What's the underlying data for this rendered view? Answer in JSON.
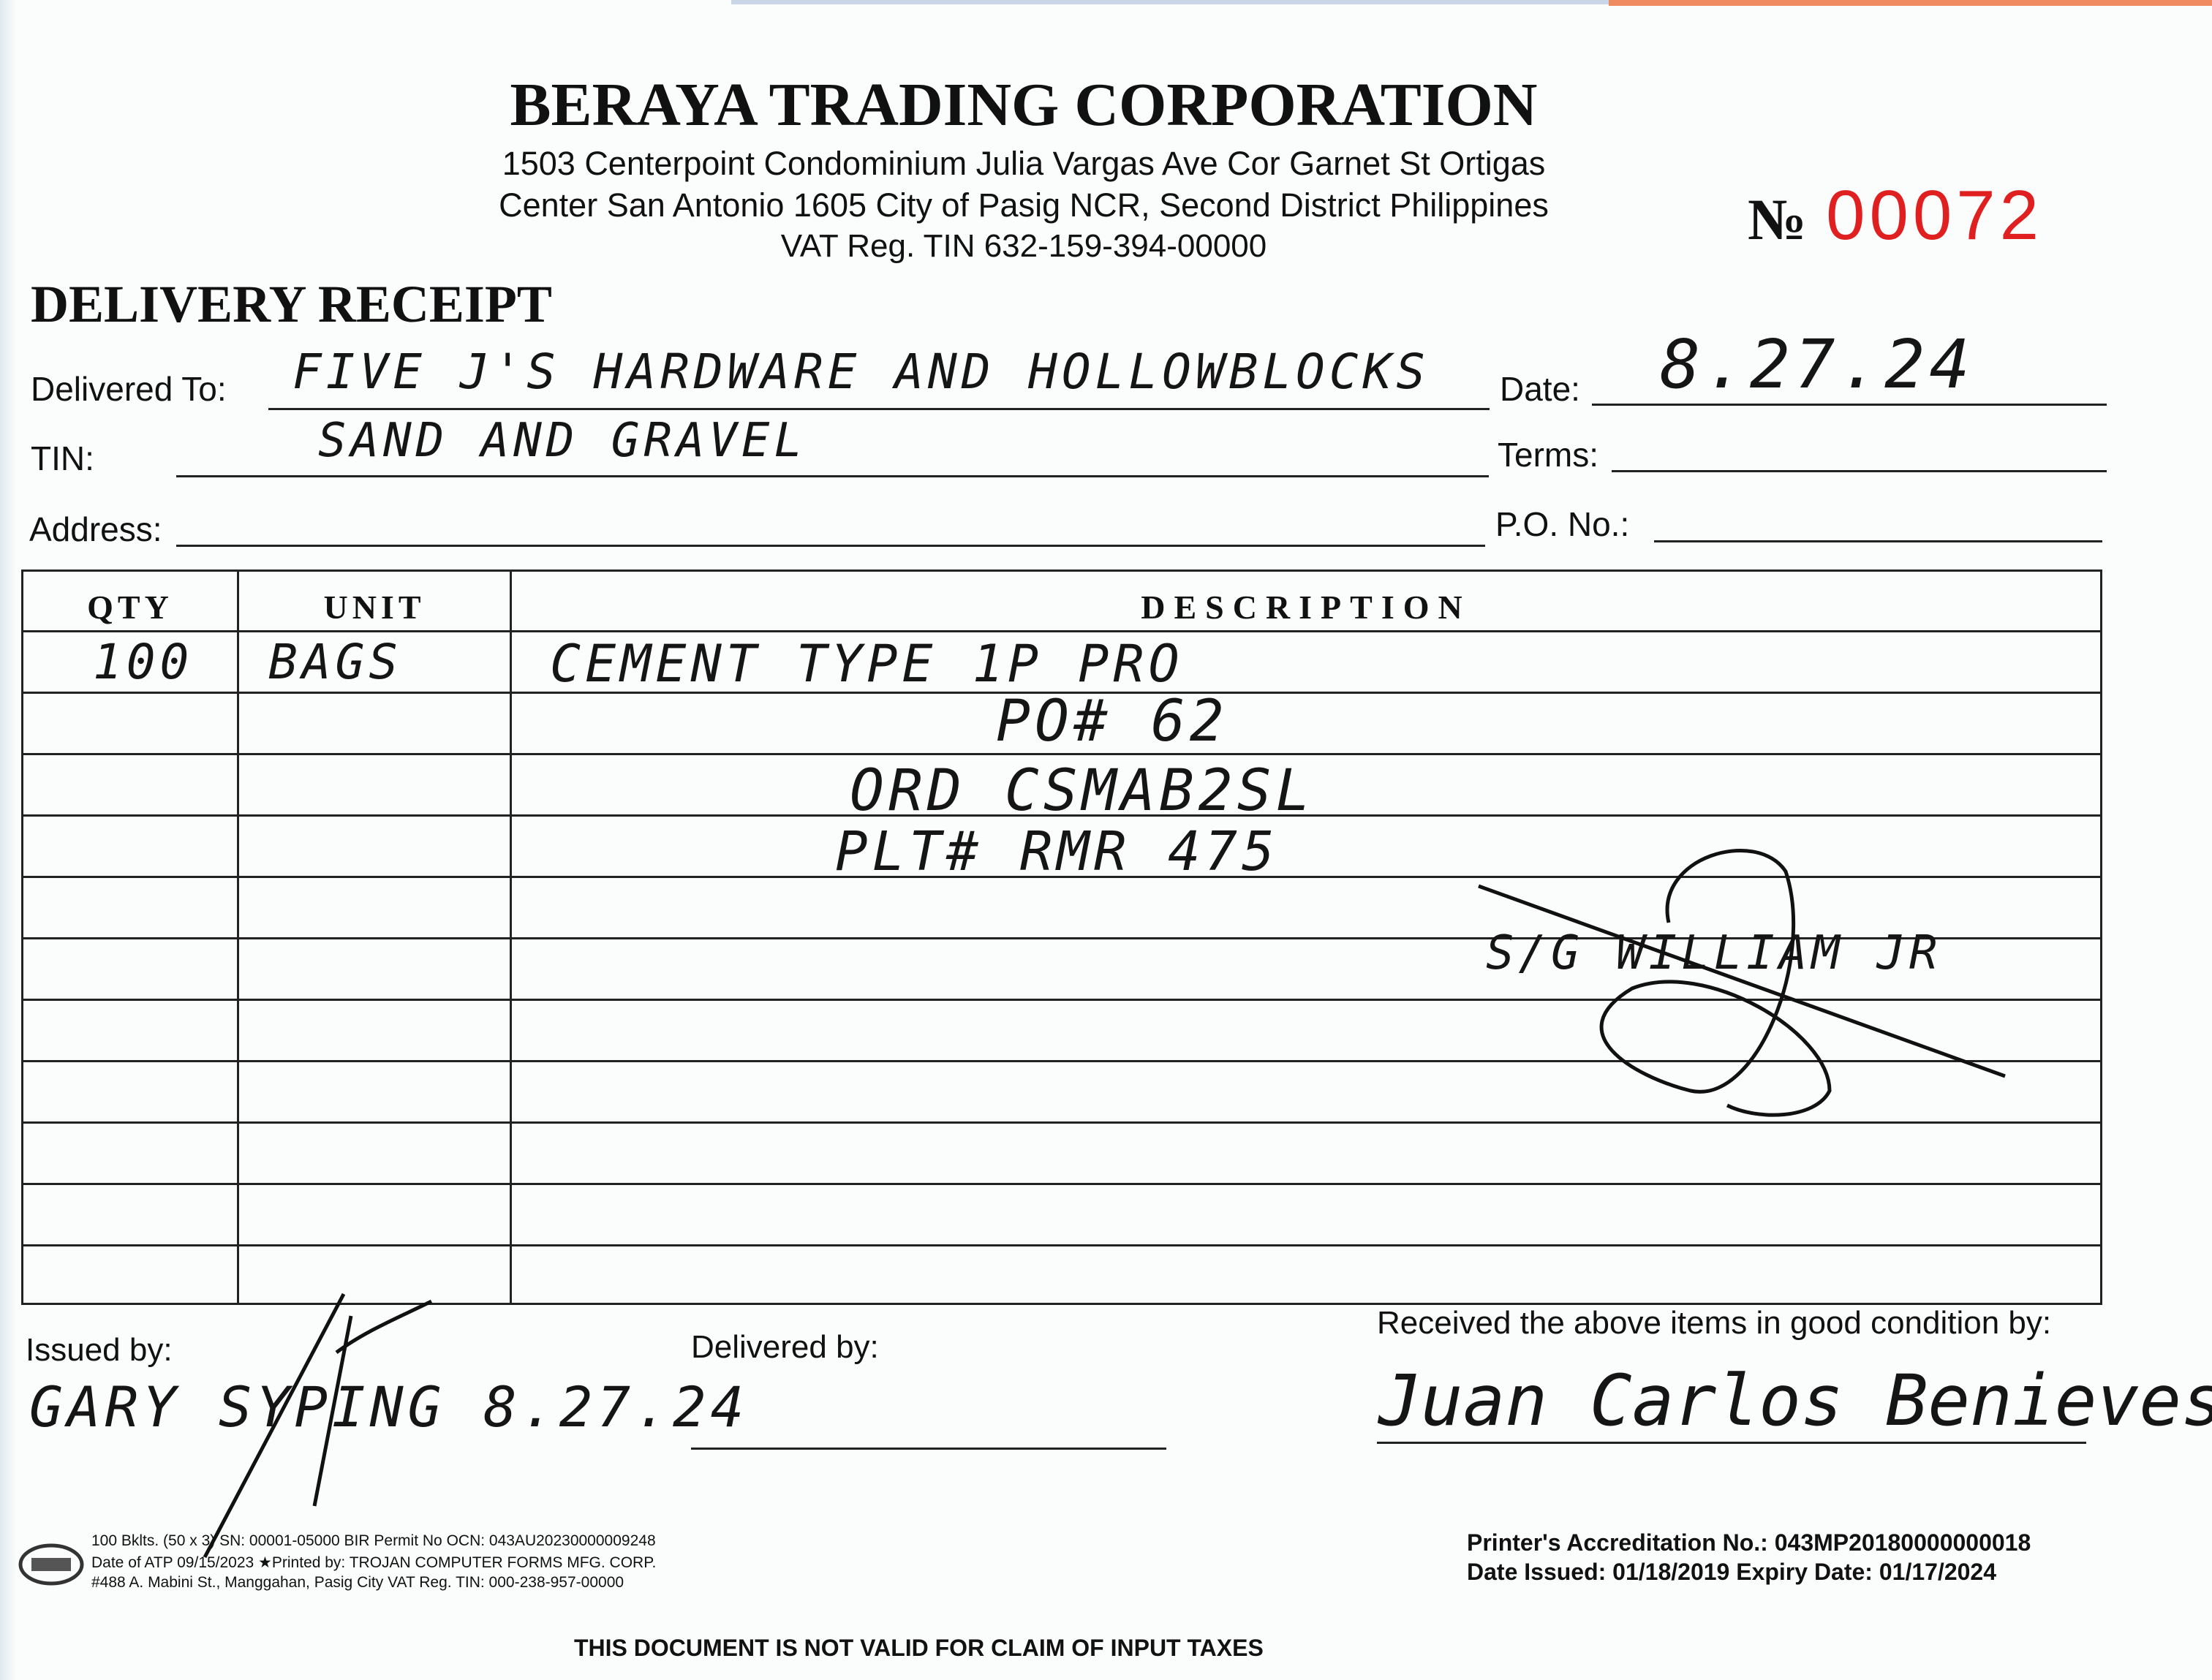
{
  "company": {
    "name": "BERAYA TRADING CORPORATION",
    "address_line1": "1503 Centerpoint Condominium Julia Vargas Ave Cor Garnet St Ortigas",
    "address_line2": "Center San Antonio 1605 City of Pasig NCR, Second District Philippines",
    "vat_tin": "VAT Reg. TIN 632-159-394-00000"
  },
  "receipt_number": {
    "prefix": "№",
    "value": "00072",
    "color": "#e02020"
  },
  "doc_title": "DELIVERY RECEIPT",
  "fields": {
    "delivered_to_label": "Delivered To:",
    "delivered_to_value": "FIVE J'S HARDWARE AND HOLLOWBLOCKS",
    "tin_label": "TIN:",
    "tin_value": "SAND AND GRAVEL",
    "address_label": "Address:",
    "date_label": "Date:",
    "date_value": "8.27.24",
    "terms_label": "Terms:",
    "po_label": "P.O. No.:"
  },
  "table": {
    "headers": {
      "qty": "QTY",
      "unit": "UNIT",
      "description": "DESCRIPTION"
    },
    "rows": [
      {
        "qty": "100",
        "unit": "BAGS",
        "description": "CEMENT TYPE 1P PRO"
      },
      {
        "qty": "",
        "unit": "",
        "description": "PO# 62"
      },
      {
        "qty": "",
        "unit": "",
        "description": "ORD CSMAB2SL"
      },
      {
        "qty": "",
        "unit": "",
        "description": "PLT# RMR 475"
      }
    ],
    "signature_note": "S/G WILLIAM JR"
  },
  "signatures": {
    "issued_by_label": "Issued by:",
    "issued_by_value": "GARY SYPING 8.27.24",
    "delivered_by_label": "Delivered by:",
    "received_label": "Received the above items in good condition by:",
    "received_value": "Juan Carlos Benieves"
  },
  "footer": {
    "printer_line1": "100 Bklts. (50 x 3) SN: 00001-05000 BIR Permit No OCN: 043AU20230000009248",
    "printer_line2": "Date of ATP 09/15/2023   ★Printed by: TROJAN COMPUTER FORMS MFG. CORP.",
    "printer_line3": "#488 A. Mabini St., Manggahan, Pasig City   VAT Reg. TIN: 000-238-957-00000",
    "accreditation": "Printer's Accreditation No.: 043MP20180000000018",
    "date_issued": "Date Issued: 01/18/2019   Expiry Date: 01/17/2024",
    "disclaimer": "THIS DOCUMENT IS NOT VALID FOR CLAIM OF INPUT TAXES"
  }
}
